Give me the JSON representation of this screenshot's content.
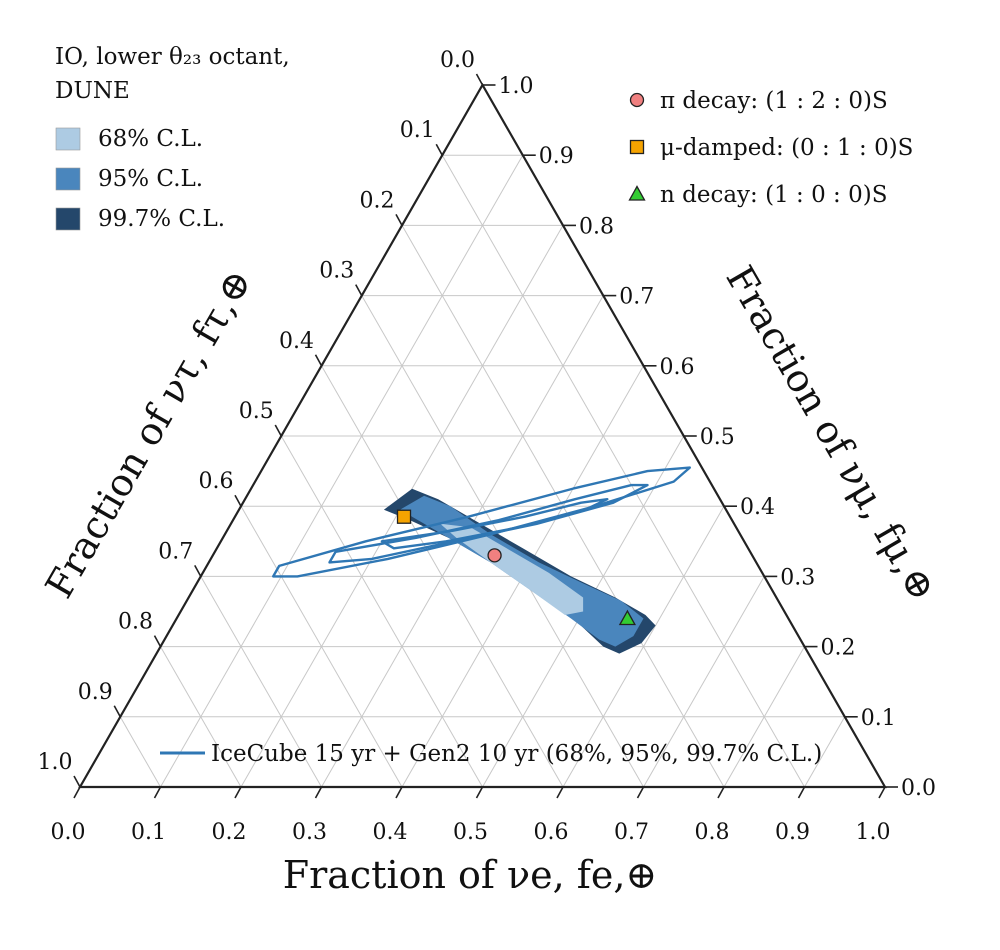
{
  "chart_data": {
    "type": "ternary",
    "info_lines": [
      "IO, lower θ₂₃ octant,",
      "DUNE"
    ],
    "fill_legend": [
      {
        "label": "68% C.L.",
        "color": "#adcbe3",
        "level": "68"
      },
      {
        "label": "95% C.L.",
        "color": "#4a86bd",
        "level": "95"
      },
      {
        "label": "99.7% C.L.",
        "color": "#24476b",
        "level": "99.7"
      }
    ],
    "line_legend": {
      "label": "IceCube 15 yr + Gen2 10 yr (68%, 95%, 99.7% C.L.)",
      "color": "#2f77b4"
    },
    "axes": {
      "e": {
        "title": "Fraction of νe, fe,⊕",
        "range": [
          0,
          1
        ]
      },
      "mu": {
        "title": "Fraction of νμ, fμ,⊕",
        "range": [
          0,
          1
        ]
      },
      "tau": {
        "title": "Fraction of ντ, fτ,⊕",
        "range": [
          0,
          1
        ]
      }
    },
    "ticks": [
      "0.0",
      "0.1",
      "0.2",
      "0.3",
      "0.4",
      "0.5",
      "0.6",
      "0.7",
      "0.8",
      "0.9",
      "1.0"
    ],
    "grid": true,
    "source_points": [
      {
        "label": "π decay: (1 : 2 : 0)S",
        "marker": "circle",
        "color": "#f08080",
        "fe": 0.35,
        "fmu": 0.33
      },
      {
        "label": "μ-damped: (0 : 1 : 0)S",
        "marker": "square",
        "color": "#f5a300",
        "fe": 0.21,
        "fmu": 0.385
      },
      {
        "label": "n decay: (1 : 0 : 0)S",
        "marker": "triangle",
        "color": "#33cc33",
        "fe": 0.56,
        "fmu": 0.24
      }
    ],
    "dune_regions": [
      {
        "level": "99.7",
        "color": "#24476b",
        "points": [
          [
            0.18,
            0.395
          ],
          [
            0.2,
            0.425
          ],
          [
            0.24,
            0.41
          ],
          [
            0.3,
            0.38
          ],
          [
            0.38,
            0.34
          ],
          [
            0.46,
            0.3
          ],
          [
            0.53,
            0.27
          ],
          [
            0.58,
            0.245
          ],
          [
            0.6,
            0.23
          ],
          [
            0.595,
            0.205
          ],
          [
            0.575,
            0.19
          ],
          [
            0.55,
            0.2
          ],
          [
            0.5,
            0.235
          ],
          [
            0.44,
            0.27
          ],
          [
            0.37,
            0.31
          ],
          [
            0.28,
            0.355
          ],
          [
            0.22,
            0.38
          ]
        ]
      },
      {
        "level": "95",
        "color": "#4a86bd",
        "points": [
          [
            0.2,
            0.395
          ],
          [
            0.22,
            0.415
          ],
          [
            0.26,
            0.4
          ],
          [
            0.33,
            0.36
          ],
          [
            0.41,
            0.32
          ],
          [
            0.48,
            0.29
          ],
          [
            0.54,
            0.265
          ],
          [
            0.58,
            0.24
          ],
          [
            0.58,
            0.215
          ],
          [
            0.565,
            0.2
          ],
          [
            0.54,
            0.21
          ],
          [
            0.49,
            0.24
          ],
          [
            0.42,
            0.28
          ],
          [
            0.35,
            0.32
          ],
          [
            0.27,
            0.36
          ],
          [
            0.22,
            0.385
          ]
        ]
      },
      {
        "level": "68",
        "color": "#adcbe3",
        "points": [
          [
            0.26,
            0.375
          ],
          [
            0.3,
            0.37
          ],
          [
            0.36,
            0.34
          ],
          [
            0.43,
            0.305
          ],
          [
            0.49,
            0.27
          ],
          [
            0.5,
            0.25
          ],
          [
            0.48,
            0.245
          ],
          [
            0.42,
            0.28
          ],
          [
            0.35,
            0.32
          ],
          [
            0.29,
            0.355
          ]
        ]
      }
    ],
    "icecube_contours": [
      {
        "level": "68",
        "points": [
          [
            0.2,
            0.35
          ],
          [
            0.28,
            0.365
          ],
          [
            0.36,
            0.385
          ],
          [
            0.42,
            0.405
          ],
          [
            0.45,
            0.41
          ],
          [
            0.43,
            0.395
          ],
          [
            0.36,
            0.37
          ],
          [
            0.28,
            0.35
          ],
          [
            0.22,
            0.34
          ]
        ]
      },
      {
        "level": "95",
        "points": [
          [
            0.15,
            0.335
          ],
          [
            0.24,
            0.355
          ],
          [
            0.33,
            0.38
          ],
          [
            0.41,
            0.41
          ],
          [
            0.47,
            0.43
          ],
          [
            0.49,
            0.43
          ],
          [
            0.46,
            0.405
          ],
          [
            0.38,
            0.375
          ],
          [
            0.29,
            0.35
          ],
          [
            0.2,
            0.325
          ],
          [
            0.15,
            0.32
          ]
        ]
      },
      {
        "level": "99.7",
        "points": [
          [
            0.09,
            0.315
          ],
          [
            0.18,
            0.35
          ],
          [
            0.29,
            0.385
          ],
          [
            0.4,
            0.425
          ],
          [
            0.48,
            0.45
          ],
          [
            0.53,
            0.455
          ],
          [
            0.52,
            0.435
          ],
          [
            0.44,
            0.4
          ],
          [
            0.33,
            0.36
          ],
          [
            0.22,
            0.325
          ],
          [
            0.12,
            0.3
          ],
          [
            0.09,
            0.3
          ]
        ]
      }
    ]
  }
}
